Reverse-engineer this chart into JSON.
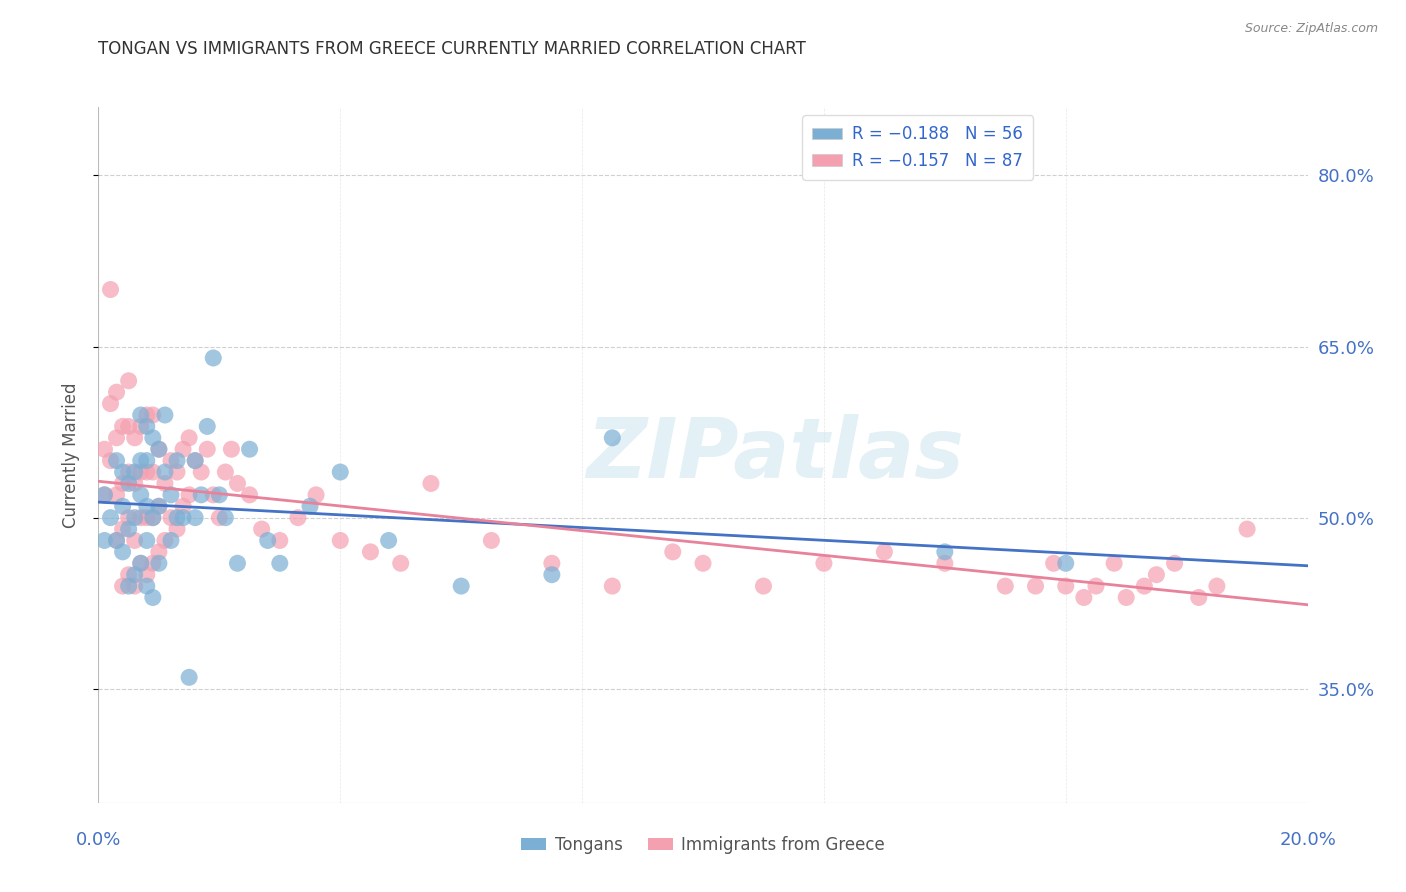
{
  "title": "TONGAN VS IMMIGRANTS FROM GREECE CURRENTLY MARRIED CORRELATION CHART",
  "source": "Source: ZipAtlas.com",
  "ylabel": "Currently Married",
  "watermark": "ZIPatlas",
  "legend_entries": [
    {
      "label": "R = -0.188",
      "n": "N = 56",
      "color": "#a8c4e0"
    },
    {
      "label": "R = -0.157",
      "n": "N = 87",
      "color": "#f4a8b8"
    }
  ],
  "legend_bottom": [
    "Tongans",
    "Immigrants from Greece"
  ],
  "y_ticks": [
    0.35,
    0.5,
    0.65,
    0.8
  ],
  "y_tick_labels": [
    "35.0%",
    "50.0%",
    "65.0%",
    "80.0%"
  ],
  "x_lim": [
    0.0,
    0.2
  ],
  "y_lim": [
    0.25,
    0.86
  ],
  "blue_color": "#7bafd4",
  "pink_color": "#f4a0b0",
  "blue_line_color": "#4472c4",
  "pink_line_color": "#e8829a",
  "grid_color": "#d0d0d0",
  "right_axis_color": "#4472c4",
  "tongans_x": [
    0.001,
    0.001,
    0.002,
    0.003,
    0.003,
    0.004,
    0.004,
    0.004,
    0.005,
    0.005,
    0.005,
    0.006,
    0.006,
    0.006,
    0.007,
    0.007,
    0.007,
    0.007,
    0.008,
    0.008,
    0.008,
    0.008,
    0.008,
    0.009,
    0.009,
    0.009,
    0.01,
    0.01,
    0.01,
    0.011,
    0.011,
    0.012,
    0.012,
    0.013,
    0.013,
    0.014,
    0.015,
    0.016,
    0.016,
    0.017,
    0.018,
    0.019,
    0.02,
    0.021,
    0.023,
    0.025,
    0.028,
    0.03,
    0.035,
    0.04,
    0.048,
    0.06,
    0.075,
    0.085,
    0.14,
    0.16
  ],
  "tongans_y": [
    0.52,
    0.48,
    0.5,
    0.55,
    0.48,
    0.47,
    0.51,
    0.54,
    0.44,
    0.49,
    0.53,
    0.45,
    0.5,
    0.54,
    0.46,
    0.52,
    0.55,
    0.59,
    0.44,
    0.48,
    0.51,
    0.55,
    0.58,
    0.43,
    0.5,
    0.57,
    0.46,
    0.51,
    0.56,
    0.54,
    0.59,
    0.48,
    0.52,
    0.5,
    0.55,
    0.5,
    0.36,
    0.5,
    0.55,
    0.52,
    0.58,
    0.64,
    0.52,
    0.5,
    0.46,
    0.56,
    0.48,
    0.46,
    0.51,
    0.54,
    0.48,
    0.44,
    0.45,
    0.57,
    0.47,
    0.46
  ],
  "greece_x": [
    0.001,
    0.001,
    0.002,
    0.002,
    0.002,
    0.003,
    0.003,
    0.003,
    0.003,
    0.004,
    0.004,
    0.004,
    0.004,
    0.005,
    0.005,
    0.005,
    0.005,
    0.005,
    0.006,
    0.006,
    0.006,
    0.006,
    0.007,
    0.007,
    0.007,
    0.007,
    0.008,
    0.008,
    0.008,
    0.008,
    0.009,
    0.009,
    0.009,
    0.009,
    0.01,
    0.01,
    0.01,
    0.011,
    0.011,
    0.012,
    0.012,
    0.013,
    0.013,
    0.014,
    0.014,
    0.015,
    0.015,
    0.016,
    0.017,
    0.018,
    0.019,
    0.02,
    0.021,
    0.022,
    0.023,
    0.025,
    0.027,
    0.03,
    0.033,
    0.036,
    0.04,
    0.045,
    0.05,
    0.055,
    0.065,
    0.075,
    0.085,
    0.095,
    0.1,
    0.11,
    0.12,
    0.13,
    0.14,
    0.15,
    0.155,
    0.158,
    0.16,
    0.163,
    0.165,
    0.168,
    0.17,
    0.173,
    0.175,
    0.178,
    0.182,
    0.185,
    0.19
  ],
  "greece_y": [
    0.52,
    0.56,
    0.55,
    0.6,
    0.7,
    0.48,
    0.52,
    0.57,
    0.61,
    0.44,
    0.49,
    0.53,
    0.58,
    0.45,
    0.5,
    0.54,
    0.58,
    0.62,
    0.44,
    0.48,
    0.53,
    0.57,
    0.46,
    0.5,
    0.54,
    0.58,
    0.45,
    0.5,
    0.54,
    0.59,
    0.46,
    0.5,
    0.54,
    0.59,
    0.47,
    0.51,
    0.56,
    0.48,
    0.53,
    0.5,
    0.55,
    0.49,
    0.54,
    0.51,
    0.56,
    0.52,
    0.57,
    0.55,
    0.54,
    0.56,
    0.52,
    0.5,
    0.54,
    0.56,
    0.53,
    0.52,
    0.49,
    0.48,
    0.5,
    0.52,
    0.48,
    0.47,
    0.46,
    0.53,
    0.48,
    0.46,
    0.44,
    0.47,
    0.46,
    0.44,
    0.46,
    0.47,
    0.46,
    0.44,
    0.44,
    0.46,
    0.44,
    0.43,
    0.44,
    0.46,
    0.43,
    0.44,
    0.45,
    0.46,
    0.43,
    0.44,
    0.49
  ]
}
